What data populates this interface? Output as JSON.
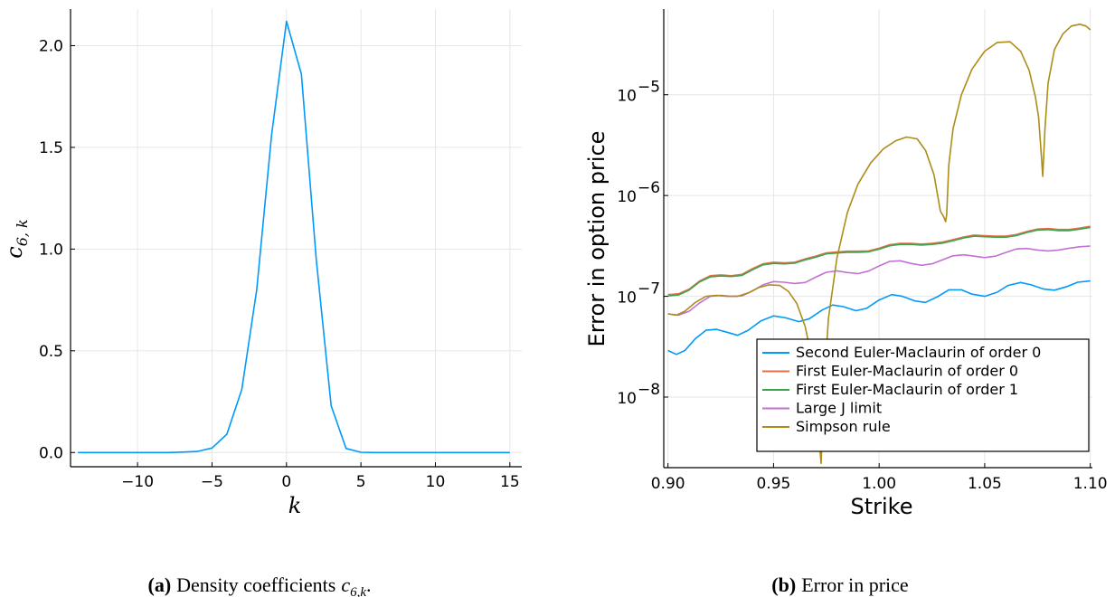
{
  "chart_data": [
    {
      "type": "line",
      "panel": "a",
      "caption_label": "(a)",
      "caption_text": "Density coefficients",
      "caption_math": "c",
      "caption_sub": "6,k",
      "caption_end": ".",
      "xlabel": "k",
      "ylabel_base": "c",
      "ylabel_sub": "6, k",
      "xlim": [
        -14.5,
        15.8
      ],
      "ylim": [
        -0.07,
        2.18
      ],
      "xticks": [
        -10,
        -5,
        0,
        5,
        10,
        15
      ],
      "xtick_labels": [
        "−10",
        "−5",
        "0",
        "5",
        "10",
        "15"
      ],
      "yticks": [
        0.0,
        0.5,
        1.0,
        1.5,
        2.0
      ],
      "ytick_labels": [
        "0.0",
        "0.5",
        "1.0",
        "1.5",
        "2.0"
      ],
      "grid": true,
      "color": "#009AFA",
      "series": [
        {
          "name": "c6k",
          "x": [
            -14,
            -13,
            -12,
            -11,
            -10,
            -9,
            -8,
            -7,
            -6,
            -5,
            -4,
            -3,
            -2,
            -1,
            0,
            1,
            2,
            3,
            4,
            5,
            6,
            7,
            8,
            9,
            10,
            11,
            12,
            13,
            14,
            15
          ],
          "y": [
            0,
            0,
            0,
            0,
            0,
            0,
            0,
            0.002,
            0.005,
            0.022,
            0.09,
            0.31,
            0.8,
            1.56,
            2.12,
            1.86,
            0.95,
            0.23,
            0.02,
            0.001,
            0,
            0,
            0,
            0,
            0,
            0,
            0,
            0,
            0,
            0
          ]
        }
      ]
    },
    {
      "type": "line",
      "panel": "b",
      "caption_label": "(b)",
      "caption_text": "Error in price",
      "xlabel": "Strike",
      "ylabel": "Error in option price",
      "yscale": "log",
      "xlim": [
        0.898,
        1.101
      ],
      "ylim_log10": [
        -8.7,
        -4.15
      ],
      "xticks": [
        0.9,
        0.95,
        1.0,
        1.05,
        1.1
      ],
      "xtick_labels": [
        "0.90",
        "0.95",
        "1.00",
        "1.05",
        "1.10"
      ],
      "ytick_exponents": [
        -8,
        -7,
        -6,
        -5
      ],
      "ytick_base": "10",
      "ytick_signs": [
        "−8",
        "−7",
        "−6",
        "−5"
      ],
      "grid": true,
      "legend_position": "bottom-right",
      "series": [
        {
          "name": "Second Euler-Maclaurin of order 0",
          "color": "#009AFA",
          "x": [
            0.9,
            0.904,
            0.908,
            0.913,
            0.918,
            0.923,
            0.928,
            0.933,
            0.938,
            0.944,
            0.95,
            0.956,
            0.962,
            0.967,
            0.973,
            0.978,
            0.983,
            0.989,
            0.994,
            1.0,
            1.006,
            1.011,
            1.017,
            1.022,
            1.028,
            1.033,
            1.039,
            1.044,
            1.05,
            1.056,
            1.061,
            1.067,
            1.072,
            1.078,
            1.083,
            1.089,
            1.094,
            1.1
          ],
          "y": [
            2.9e-08,
            2.65e-08,
            2.9e-08,
            3.8e-08,
            4.6e-08,
            4.7e-08,
            4.4e-08,
            4.1e-08,
            4.6e-08,
            5.7e-08,
            6.4e-08,
            6.1e-08,
            5.6e-08,
            6e-08,
            7.3e-08,
            8.2e-08,
            7.9e-08,
            7.2e-08,
            7.6e-08,
            9.2e-08,
            1.04e-07,
            1e-07,
            9e-08,
            8.7e-08,
            1e-07,
            1.16e-07,
            1.16e-07,
            1.05e-07,
            1e-07,
            1.1e-07,
            1.28e-07,
            1.37e-07,
            1.3e-07,
            1.18e-07,
            1.15e-07,
            1.25e-07,
            1.38e-07,
            1.42e-07
          ]
        },
        {
          "name": "First Euler-Maclaurin of order 0",
          "color": "#E26F46",
          "x": [
            0.9,
            0.905,
            0.91,
            0.915,
            0.92,
            0.925,
            0.93,
            0.935,
            0.94,
            0.945,
            0.95,
            0.955,
            0.96,
            0.965,
            0.97,
            0.975,
            0.98,
            0.985,
            0.99,
            0.995,
            1.0,
            1.005,
            1.01,
            1.015,
            1.02,
            1.025,
            1.03,
            1.035,
            1.04,
            1.045,
            1.05,
            1.055,
            1.06,
            1.065,
            1.07,
            1.075,
            1.08,
            1.085,
            1.09,
            1.095,
            1.1
          ],
          "y": [
            1.04e-07,
            1.06e-07,
            1.18e-07,
            1.42e-07,
            1.6e-07,
            1.63e-07,
            1.6e-07,
            1.65e-07,
            1.88e-07,
            2.1e-07,
            2.18e-07,
            2.15e-07,
            2.18e-07,
            2.35e-07,
            2.5e-07,
            2.7e-07,
            2.75e-07,
            2.8e-07,
            2.8e-07,
            2.82e-07,
            3e-07,
            3.25e-07,
            3.35e-07,
            3.35e-07,
            3.3e-07,
            3.35e-07,
            3.45e-07,
            3.65e-07,
            3.88e-07,
            4.05e-07,
            4e-07,
            3.95e-07,
            3.95e-07,
            4.1e-07,
            4.4e-07,
            4.65e-07,
            4.7e-07,
            4.6e-07,
            4.6e-07,
            4.75e-07,
            4.95e-07
          ]
        },
        {
          "name": "First Euler-Maclaurin of order 1",
          "color": "#3DA44D",
          "x": [
            0.9,
            0.905,
            0.91,
            0.915,
            0.92,
            0.925,
            0.93,
            0.935,
            0.94,
            0.945,
            0.95,
            0.955,
            0.96,
            0.965,
            0.97,
            0.975,
            0.98,
            0.985,
            0.99,
            0.995,
            1.0,
            1.005,
            1.01,
            1.015,
            1.02,
            1.025,
            1.03,
            1.035,
            1.04,
            1.045,
            1.05,
            1.055,
            1.06,
            1.065,
            1.07,
            1.075,
            1.08,
            1.085,
            1.09,
            1.095,
            1.1
          ],
          "y": [
            1.01e-07,
            1.03e-07,
            1.15e-07,
            1.39e-07,
            1.56e-07,
            1.59e-07,
            1.57e-07,
            1.61e-07,
            1.83e-07,
            2.05e-07,
            2.12e-07,
            2.1e-07,
            2.13e-07,
            2.3e-07,
            2.44e-07,
            2.64e-07,
            2.69e-07,
            2.73e-07,
            2.73e-07,
            2.76e-07,
            2.93e-07,
            3.17e-07,
            3.27e-07,
            3.27e-07,
            3.22e-07,
            3.27e-07,
            3.37e-07,
            3.56e-07,
            3.79e-07,
            3.95e-07,
            3.9e-07,
            3.86e-07,
            3.86e-07,
            4e-07,
            4.3e-07,
            4.54e-07,
            4.59e-07,
            4.49e-07,
            4.49e-07,
            4.64e-07,
            4.83e-07
          ]
        },
        {
          "name": "Large J limit",
          "color": "#C271D2",
          "x": [
            0.9,
            0.905,
            0.91,
            0.915,
            0.92,
            0.925,
            0.93,
            0.935,
            0.94,
            0.945,
            0.95,
            0.955,
            0.96,
            0.965,
            0.97,
            0.975,
            0.98,
            0.985,
            0.99,
            0.995,
            1.0,
            1.005,
            1.01,
            1.015,
            1.02,
            1.025,
            1.03,
            1.035,
            1.04,
            1.045,
            1.05,
            1.055,
            1.06,
            1.065,
            1.07,
            1.075,
            1.08,
            1.085,
            1.09,
            1.095,
            1.1
          ],
          "y": [
            6.7e-08,
            6.5e-08,
            7.1e-08,
            8.6e-08,
            1e-07,
            1.02e-07,
            1e-07,
            1.01e-07,
            1.13e-07,
            1.3e-07,
            1.4e-07,
            1.38e-07,
            1.34e-07,
            1.37e-07,
            1.55e-07,
            1.73e-07,
            1.79e-07,
            1.72e-07,
            1.68e-07,
            1.78e-07,
            2e-07,
            2.22e-07,
            2.25e-07,
            2.12e-07,
            2.03e-07,
            2.1e-07,
            2.3e-07,
            2.52e-07,
            2.58e-07,
            2.5e-07,
            2.42e-07,
            2.5e-07,
            2.72e-07,
            2.95e-07,
            2.98e-07,
            2.88e-07,
            2.82e-07,
            2.88e-07,
            3e-07,
            3.1e-07,
            3.15e-07
          ]
        },
        {
          "name": "Simpson rule",
          "color": "#AC8D18",
          "x": [
            0.9,
            0.904,
            0.908,
            0.913,
            0.918,
            0.923,
            0.928,
            0.933,
            0.938,
            0.943,
            0.948,
            0.953,
            0.957,
            0.961,
            0.965,
            0.968,
            0.9705,
            0.972,
            0.9725,
            0.974,
            0.976,
            0.98,
            0.985,
            0.99,
            0.996,
            1.002,
            1.008,
            1.013,
            1.018,
            1.022,
            1.026,
            1.029,
            1.0305,
            1.0315,
            1.032,
            1.033,
            1.035,
            1.039,
            1.044,
            1.05,
            1.056,
            1.062,
            1.067,
            1.071,
            1.074,
            1.0755,
            1.077,
            1.0775,
            1.0785,
            1.08,
            1.083,
            1.087,
            1.091,
            1.095,
            1.098,
            1.1
          ],
          "y": [
            6.7e-08,
            6.5e-08,
            7.1e-08,
            8.7e-08,
            1e-07,
            1.02e-07,
            1e-07,
            1e-07,
            1.08e-07,
            1.22e-07,
            1.3e-07,
            1.28e-07,
            1.12e-07,
            8.5e-08,
            5e-08,
            2.5e-08,
            8e-09,
            3e-09,
            2.2e-09,
            1.4e-08,
            6e-08,
            2.4e-07,
            6.8e-07,
            1.3e-06,
            2.1e-06,
            2.9e-06,
            3.5e-06,
            3.8e-06,
            3.65e-06,
            2.8e-06,
            1.6e-06,
            7e-07,
            6.2e-07,
            5.5e-07,
            6.5e-07,
            2e-06,
            4.6e-06,
            1e-05,
            1.8e-05,
            2.7e-05,
            3.3e-05,
            3.35e-05,
            2.7e-05,
            1.75e-05,
            9.5e-06,
            6e-06,
            2.2e-06,
            1.55e-06,
            4.5e-06,
            1.3e-05,
            2.8e-05,
            4e-05,
            4.8e-05,
            5e-05,
            4.8e-05,
            4.4e-05
          ]
        }
      ]
    }
  ]
}
